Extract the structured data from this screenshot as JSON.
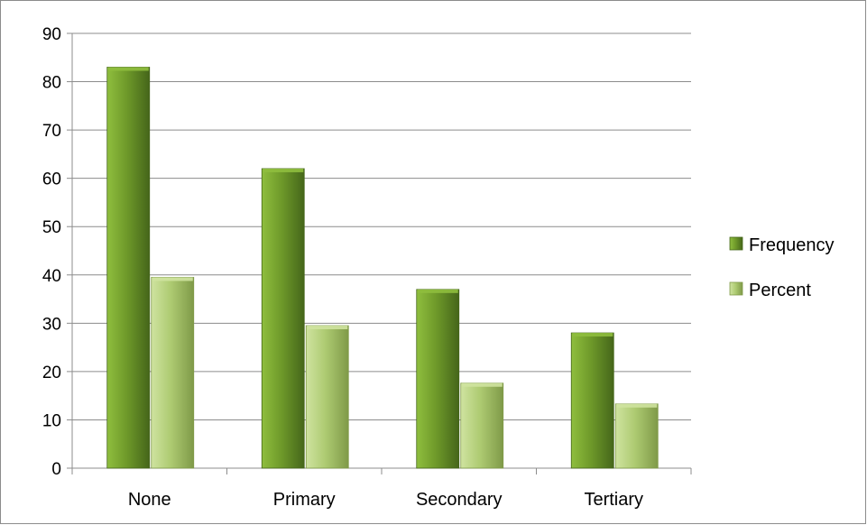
{
  "chart_data": {
    "type": "bar",
    "categories": [
      "None",
      "Primary",
      "Secondary",
      "Tertiary"
    ],
    "series": [
      {
        "name": "Frequency",
        "values": [
          83,
          62,
          37,
          28
        ]
      },
      {
        "name": "Percent",
        "values": [
          39.5,
          29.5,
          17.6,
          13.3
        ]
      }
    ],
    "ylim": [
      0,
      90
    ],
    "yticks": [
      0,
      10,
      20,
      30,
      40,
      50,
      60,
      70,
      80,
      90
    ],
    "grid": true,
    "legend_position": "right",
    "colors": {
      "frequency_light": "#8fbe3e",
      "frequency_mid": "#6f9a2a",
      "frequency_dark": "#45661a",
      "percent_light": "#cfe3a0",
      "percent_mid": "#aecb72",
      "percent_dark": "#7f9a48",
      "gridline": "#8c8c8c",
      "axis": "#8c8c8c"
    }
  }
}
